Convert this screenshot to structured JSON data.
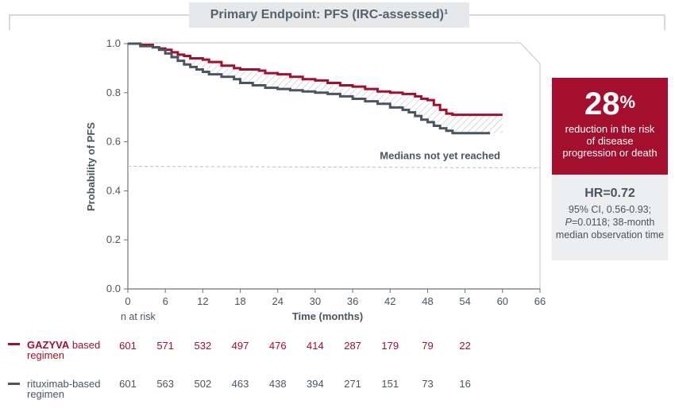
{
  "header": {
    "title": "Primary Endpoint: PFS (IRC-assessed)¹"
  },
  "colors": {
    "gazyva": "#a40f2e",
    "rituximab": "#4a5560",
    "callout_bg": "#a40f2e",
    "hr_bg": "#eceeef"
  },
  "chart_data": {
    "type": "line",
    "ylabel": "Probability of PFS",
    "xlabel": "Time (months)",
    "xlim": [
      0,
      66
    ],
    "ylim": [
      0,
      1.0
    ],
    "x_ticks": [
      0,
      6,
      12,
      18,
      24,
      30,
      36,
      42,
      48,
      54,
      60,
      66
    ],
    "y_ticks": [
      "0.0",
      "0.2",
      "0.4",
      "0.6",
      "0.8",
      "1.0"
    ],
    "y_tick_values": [
      0.0,
      0.2,
      0.4,
      0.6,
      0.8,
      1.0
    ],
    "annotation": "Medians not yet reached",
    "reference_line_y": 0.5,
    "series": [
      {
        "name": "GAZYVA based regimen",
        "color": "#a40f2e",
        "x": [
          0,
          2,
          4,
          5,
          6,
          7,
          8,
          9,
          10,
          12,
          13,
          15,
          17,
          18,
          21,
          22,
          24,
          26,
          28,
          30,
          32,
          34,
          36,
          38,
          40,
          42,
          44,
          46,
          47,
          48,
          49,
          50,
          51,
          52,
          55,
          58,
          60
        ],
        "y": [
          1.0,
          0.995,
          0.985,
          0.98,
          0.975,
          0.965,
          0.955,
          0.95,
          0.94,
          0.935,
          0.925,
          0.91,
          0.9,
          0.895,
          0.89,
          0.88,
          0.875,
          0.865,
          0.855,
          0.85,
          0.84,
          0.83,
          0.825,
          0.815,
          0.805,
          0.8,
          0.795,
          0.785,
          0.775,
          0.77,
          0.75,
          0.73,
          0.715,
          0.71,
          0.71,
          0.71,
          0.71
        ]
      },
      {
        "name": "rituximab-based regimen",
        "color": "#4a5560",
        "x": [
          0,
          2,
          4,
          5,
          6,
          7,
          8,
          9,
          10,
          11,
          12,
          13,
          15,
          17,
          18,
          20,
          22,
          24,
          26,
          28,
          30,
          32,
          34,
          36,
          38,
          40,
          42,
          44,
          45,
          46,
          47,
          48,
          49,
          50,
          51,
          52,
          55,
          58
        ],
        "y": [
          1.0,
          0.99,
          0.985,
          0.975,
          0.96,
          0.945,
          0.93,
          0.915,
          0.905,
          0.895,
          0.885,
          0.875,
          0.865,
          0.855,
          0.84,
          0.83,
          0.82,
          0.815,
          0.81,
          0.805,
          0.8,
          0.795,
          0.785,
          0.775,
          0.765,
          0.755,
          0.74,
          0.73,
          0.72,
          0.705,
          0.69,
          0.68,
          0.665,
          0.655,
          0.645,
          0.635,
          0.635,
          0.635
        ]
      }
    ]
  },
  "callout": {
    "percent": "28",
    "percent_sign": "%",
    "text": "reduction in the risk of disease progression or death"
  },
  "hr_box": {
    "hr": "HR=0.72",
    "ci_line1": "95% CI, 0.56-0.93;",
    "p_italic": "P",
    "p_rest": "=0.0118; 38-month median observation time"
  },
  "risk_table": {
    "heading": "n at risk",
    "rows": [
      {
        "label_bold": "GAZYVA",
        "label_rest": " based",
        "label_line2": "regimen",
        "values": [
          "601",
          "571",
          "532",
          "497",
          "476",
          "414",
          "287",
          "179",
          "79",
          "22"
        ]
      },
      {
        "label_bold": "",
        "label_rest": "rituximab-based",
        "label_line2": "regimen",
        "values": [
          "601",
          "563",
          "502",
          "463",
          "438",
          "394",
          "271",
          "151",
          "73",
          "16"
        ]
      }
    ]
  }
}
